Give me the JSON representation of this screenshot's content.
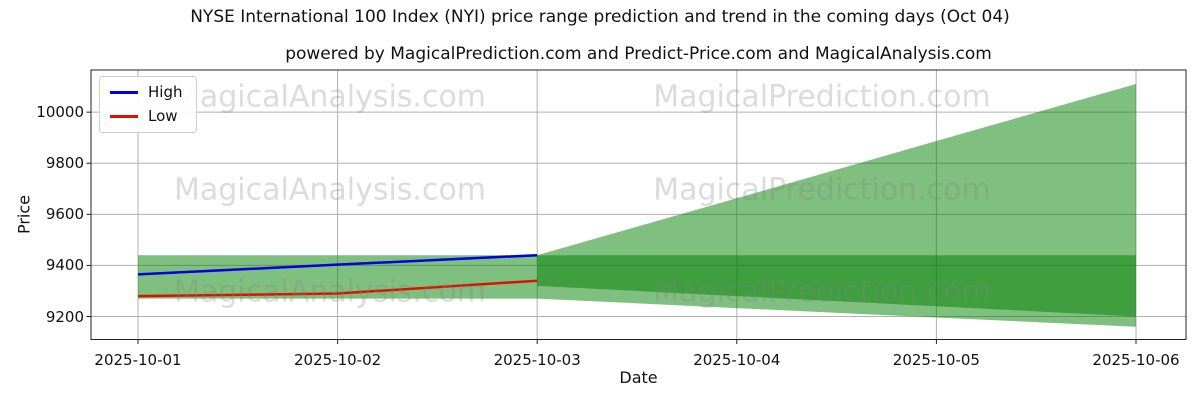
{
  "header": {
    "title": "NYSE International 100 Index (NYI) price range prediction and trend in the coming days (Oct 04)",
    "subtitle": "powered by MagicalPrediction.com and Predict-Price.com and MagicalAnalysis.com"
  },
  "watermarks": {
    "left_text": "MagicalAnalysis.com",
    "right_text": "MagicalPrediction.com"
  },
  "legend": {
    "items": [
      {
        "label": "High",
        "color": "#0000dd"
      },
      {
        "label": "Low",
        "color": "#dd1100"
      }
    ]
  },
  "chart_data": {
    "type": "area",
    "title": "NYSE International 100 Index (NYI) price range prediction and trend in the coming days (Oct 04)",
    "subtitle": "powered by MagicalPrediction.com and Predict-Price.com and MagicalAnalysis.com",
    "xlabel": "Date",
    "ylabel": "Price",
    "x": [
      "2025-10-01",
      "2025-10-02",
      "2025-10-03",
      "2025-10-04",
      "2025-10-05",
      "2025-10-06"
    ],
    "yticks": [
      9200,
      9400,
      9600,
      9800,
      10000
    ],
    "ylim": [
      9110,
      10165
    ],
    "grid": true,
    "legend_position": "upper-left",
    "series": [
      {
        "name": "High",
        "color": "#0000dd",
        "x": [
          "2025-10-01",
          "2025-10-02",
          "2025-10-03"
        ],
        "values": [
          9365,
          9403,
          9440
        ]
      },
      {
        "name": "Low",
        "color": "#dd1100",
        "x": [
          "2025-10-01",
          "2025-10-02",
          "2025-10-03"
        ],
        "values": [
          9280,
          9290,
          9340
        ]
      }
    ],
    "bands": [
      {
        "name": "outer-prediction-fan",
        "color": "rgba(0,128,0,0.5)",
        "x": [
          "2025-10-01",
          "2025-10-02",
          "2025-10-03",
          "2025-10-04",
          "2025-10-05",
          "2025-10-06"
        ],
        "top": [
          9440,
          9440,
          9440,
          9663,
          9887,
          10110
        ],
        "bottom": [
          9270,
          9270,
          9270,
          9233,
          9196,
          9160
        ]
      },
      {
        "name": "inner-trend-band",
        "color": "rgba(0,128,0,0.5)",
        "x": [
          "2025-10-03",
          "2025-10-04",
          "2025-10-05",
          "2025-10-06"
        ],
        "top": [
          9440,
          9440,
          9440,
          9440
        ],
        "bottom": [
          9320,
          9280,
          9240,
          9200
        ]
      }
    ]
  }
}
